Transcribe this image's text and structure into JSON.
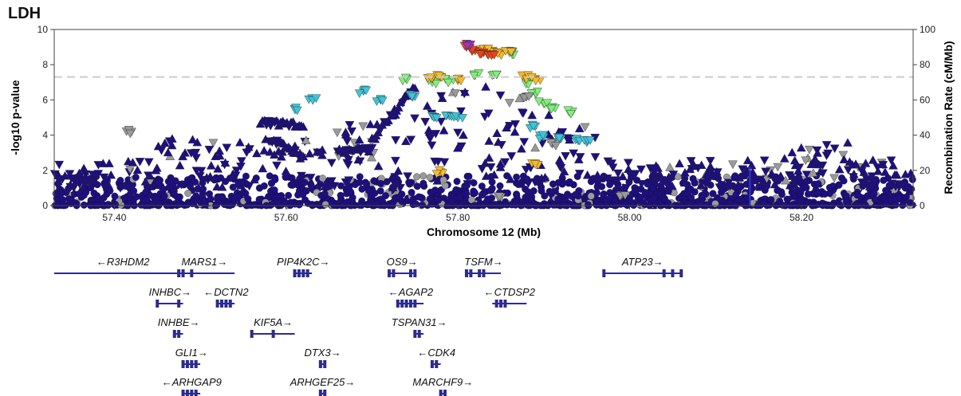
{
  "panel_title": "LDH",
  "chart_data": {
    "type": "scatter",
    "title": "LDH",
    "xlabel": "Chromosome 12 (Mb)",
    "ylabel": "-log10 p-value",
    "y2label": "Recombination Rate (cM/Mb)",
    "xlim": [
      57.33,
      58.33
    ],
    "ylim": [
      0,
      10
    ],
    "y2lim": [
      0,
      100
    ],
    "xticks": [
      57.4,
      57.6,
      57.8,
      58.0,
      58.2
    ],
    "xtick_labels": [
      "57.40",
      "57.60",
      "57.80",
      "58.00",
      "58.20"
    ],
    "yticks": [
      0,
      2,
      4,
      6,
      8,
      10
    ],
    "y2ticks": [
      0,
      20,
      40,
      60,
      80,
      100
    ],
    "significance_threshold": 7.3,
    "colors": {
      "background": "#1e0f80",
      "r2_low": "#3ec4d8",
      "r2_mid": "#7ff07a",
      "r2_high": "#f5b92a",
      "r2_top": "#e8441c",
      "lead": "#9b38b5",
      "missing": "#9a9a9a",
      "recomb": "#2a36d6",
      "gene": "#2b2b8f",
      "threshold": "#cccccc"
    },
    "highlight_series": [
      {
        "color": "r2_low",
        "points": [
          [
            57.61,
            5.5
          ],
          [
            57.63,
            6.1
          ],
          [
            57.69,
            6.5
          ],
          [
            57.71,
            6.0
          ],
          [
            57.75,
            6.2
          ],
          [
            57.77,
            5.1
          ],
          [
            57.79,
            5.1
          ],
          [
            57.8,
            5.0
          ],
          [
            57.89,
            4.5
          ],
          [
            57.9,
            3.9
          ],
          [
            57.92,
            3.8
          ],
          [
            57.94,
            3.7
          ],
          [
            57.95,
            3.6
          ]
        ]
      },
      {
        "color": "r2_mid",
        "points": [
          [
            57.74,
            7.2
          ],
          [
            57.77,
            7.0
          ],
          [
            57.79,
            7.1
          ],
          [
            57.82,
            7.4
          ],
          [
            57.84,
            7.4
          ],
          [
            57.86,
            8.7
          ],
          [
            57.88,
            7.0
          ],
          [
            57.89,
            6.4
          ],
          [
            57.9,
            5.8
          ],
          [
            57.91,
            5.6
          ],
          [
            57.93,
            5.3
          ]
        ]
      },
      {
        "color": "r2_high",
        "points": [
          [
            57.77,
            7.2
          ],
          [
            57.78,
            7.3
          ],
          [
            57.8,
            7.1
          ],
          [
            57.83,
            8.9
          ],
          [
            57.84,
            8.8
          ],
          [
            57.85,
            8.6
          ],
          [
            57.86,
            8.8
          ],
          [
            57.88,
            7.3
          ],
          [
            57.89,
            7.2
          ],
          [
            57.78,
            1.9
          ],
          [
            57.89,
            2.4
          ]
        ]
      },
      {
        "color": "r2_top",
        "points": [
          [
            57.81,
            9.0
          ],
          [
            57.82,
            8.8
          ],
          [
            57.83,
            8.7
          ],
          [
            57.84,
            8.6
          ]
        ]
      },
      {
        "color": "lead",
        "points": [
          [
            57.81,
            9.2
          ]
        ]
      },
      {
        "color": "missing",
        "points": [
          [
            57.42,
            4.2
          ],
          [
            57.88,
            6.2
          ],
          [
            57.91,
            3.5
          ],
          [
            57.85,
            0.5
          ],
          [
            57.99,
            0.6
          ]
        ]
      }
    ]
  },
  "genes": [
    {
      "label": "←R3HDM2",
      "start": 57.33,
      "end": 57.49,
      "row": 0,
      "exons": []
    },
    {
      "label": "MARS1→",
      "start": 57.47,
      "end": 57.54,
      "row": 0,
      "exons": [
        57.475,
        57.48,
        57.49
      ]
    },
    {
      "label": "PIP4K2C→",
      "start": 57.61,
      "end": 57.63,
      "row": 0,
      "exons": [
        57.61,
        57.615,
        57.62,
        57.625
      ]
    },
    {
      "label": "OS9→",
      "start": 57.72,
      "end": 57.75,
      "row": 0,
      "exons": [
        57.72,
        57.725,
        57.745,
        57.75
      ]
    },
    {
      "label": "TSFM→",
      "start": 57.81,
      "end": 57.85,
      "row": 0,
      "exons": [
        57.81,
        57.815,
        57.825,
        57.83
      ]
    },
    {
      "label": "ATP23→",
      "start": 57.97,
      "end": 58.06,
      "row": 0,
      "exons": [
        57.97,
        58.04,
        58.05,
        58.06
      ]
    },
    {
      "label": "INHBC→",
      "start": 57.45,
      "end": 57.48,
      "row": 1,
      "exons": [
        57.45,
        57.475
      ]
    },
    {
      "label": "←DCTN2",
      "start": 57.52,
      "end": 57.54,
      "row": 1,
      "exons": [
        57.52,
        57.525,
        57.53,
        57.535
      ]
    },
    {
      "label": "←AGAP2",
      "start": 57.73,
      "end": 57.76,
      "row": 1,
      "exons": [
        57.73,
        57.735,
        57.74,
        57.745,
        57.75
      ]
    },
    {
      "label": "←CTDSP2",
      "start": 57.84,
      "end": 57.88,
      "row": 1,
      "exons": [
        57.845,
        57.85,
        57.855
      ]
    },
    {
      "label": "INHBE→",
      "start": 57.47,
      "end": 57.48,
      "row": 2,
      "exons": [
        57.47,
        57.475
      ]
    },
    {
      "label": "KIF5A→",
      "start": 57.56,
      "end": 57.61,
      "row": 2,
      "exons": [
        57.56,
        57.585
      ]
    },
    {
      "label": "TSPAN31→",
      "start": 57.75,
      "end": 57.76,
      "row": 2,
      "exons": [
        57.75,
        57.755
      ]
    },
    {
      "label": "GLI1→",
      "start": 57.48,
      "end": 57.5,
      "row": 3,
      "exons": [
        57.48,
        57.485,
        57.49,
        57.495
      ]
    },
    {
      "label": "DTX3→",
      "start": 57.64,
      "end": 57.645,
      "row": 3,
      "exons": [
        57.64,
        57.645
      ]
    },
    {
      "label": "←CDK4",
      "start": 57.77,
      "end": 57.78,
      "row": 3,
      "exons": [
        57.77,
        57.775
      ]
    },
    {
      "label": "←ARHGAP9",
      "start": 57.48,
      "end": 57.5,
      "row": 4,
      "exons": [
        57.48,
        57.485,
        57.49,
        57.495
      ]
    },
    {
      "label": "ARHGEF25→",
      "start": 57.64,
      "end": 57.645,
      "row": 4,
      "exons": [
        57.64,
        57.645
      ]
    },
    {
      "label": "MARCHF9→",
      "start": 57.78,
      "end": 57.785,
      "row": 4,
      "exons": [
        57.78,
        57.785
      ]
    }
  ]
}
